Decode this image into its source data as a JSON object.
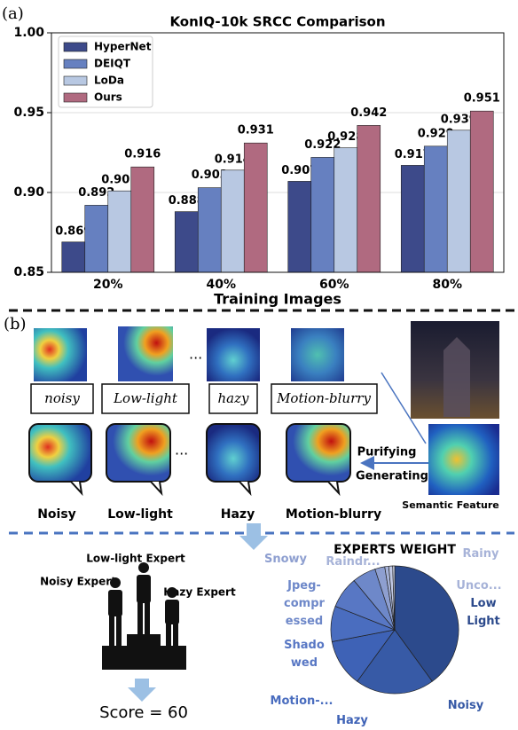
{
  "panel_a": "(a)",
  "panel_b": "(b)",
  "chart_data": [
    {
      "type": "bar",
      "title": "KonIQ-10k SRCC Comparison",
      "x_label": "Training Images",
      "categories": [
        "20%",
        "40%",
        "60%",
        "80%"
      ],
      "series": [
        {
          "name": "HyperNet",
          "color": "#3d4a8a",
          "values": [
            0.869,
            0.888,
            0.907,
            0.917
          ]
        },
        {
          "name": "DEIQT",
          "color": "#6680c0",
          "values": [
            0.892,
            0.903,
            0.922,
            0.929
          ]
        },
        {
          "name": "LoDa",
          "color": "#b8c8e2",
          "values": [
            0.901,
            0.914,
            0.928,
            0.939
          ]
        },
        {
          "name": "Ours",
          "color": "#b06a80",
          "values": [
            0.916,
            0.931,
            0.942,
            0.951
          ]
        }
      ],
      "ylim": [
        0.85,
        1.0
      ],
      "yticks": [
        {
          "value": 0.85,
          "label": "0.85"
        },
        {
          "value": 0.9,
          "label": "0.90"
        },
        {
          "value": 0.95,
          "label": "0.95"
        },
        {
          "value": 1.0,
          "label": "1.00"
        }
      ],
      "grid": true,
      "legend": "upper-left"
    },
    {
      "type": "pie",
      "title": "EXPERTS WEIGHT",
      "categories": [
        [
          "Low",
          "Light"
        ],
        [
          "Noisy"
        ],
        [
          "Hazy"
        ],
        [
          "Motion-..."
        ],
        [
          "Shado",
          "wed"
        ],
        [
          "Jpeg-",
          "compr",
          "essed"
        ],
        [
          "Snowy"
        ],
        [
          "Raindr..."
        ],
        [
          "Rainy"
        ],
        [
          "Unco..."
        ]
      ],
      "values": [
        40,
        20,
        12,
        9,
        8,
        6,
        2.5,
        1,
        1,
        0.5
      ],
      "colors": [
        "#2c4a8c",
        "#375aa6",
        "#3e62b6",
        "#4a6dbf",
        "#5877c4",
        "#6e88c9",
        "#8e9fd0",
        "#a7b3d8",
        "#c0c8e4",
        "#d8ddef"
      ]
    }
  ],
  "diagram": {
    "degradation_texts": [
      "noisy",
      "Low-light",
      "hazy",
      "Motion-blurry"
    ],
    "ellipsis": "...",
    "outputs": [
      "Noisy",
      "Low-light",
      "Hazy",
      "Motion-blurry"
    ],
    "purifying": "Purifying",
    "generating": "Generating",
    "semantic_feature": "Semantic Feature",
    "experts": [
      "Low-light Expert",
      "Noisy Expert",
      "Hazy Expert"
    ],
    "score": "Score = 60"
  }
}
